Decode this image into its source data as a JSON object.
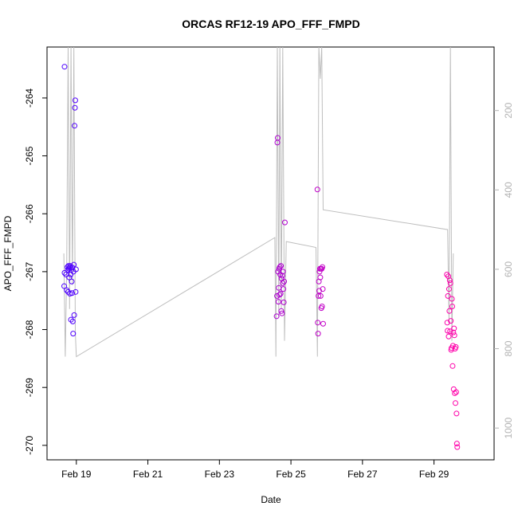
{
  "chart_data": {
    "type": "scatter",
    "title": "ORCAS RF12-19 APO_FFF_FMPD",
    "xlabel": "Date",
    "ylabel": "APO_FFF_FMPD",
    "x_unit": "days (0 = Feb 19)",
    "xlim": [
      -0.82,
      11.68
    ],
    "ylim": [
      -270.25,
      -263.12
    ],
    "x_ticks": [
      {
        "value": 0,
        "label": "Feb 19"
      },
      {
        "value": 2,
        "label": "Feb 21"
      },
      {
        "value": 4,
        "label": "Feb 23"
      },
      {
        "value": 6,
        "label": "Feb 25"
      },
      {
        "value": 8,
        "label": "Feb 27"
      },
      {
        "value": 10,
        "label": "Feb 29"
      }
    ],
    "y_ticks": [
      {
        "value": -264,
        "label": "-264"
      },
      {
        "value": -265,
        "label": "-265"
      },
      {
        "value": -266,
        "label": "-266"
      },
      {
        "value": -267,
        "label": "-267"
      },
      {
        "value": -268,
        "label": "-268"
      },
      {
        "value": -269,
        "label": "-269"
      },
      {
        "value": -270,
        "label": "-270"
      }
    ],
    "y2_axis": {
      "range": [
        1080,
        40
      ],
      "ticks": [
        {
          "value": 200,
          "label": "200"
        },
        {
          "value": 400,
          "label": "400"
        },
        {
          "value": 600,
          "label": "600"
        },
        {
          "value": 800,
          "label": "800"
        },
        {
          "value": 1000,
          "label": "1000"
        }
      ],
      "color": "#b3b3b3"
    },
    "secondary_series": {
      "color": "#bebebe",
      "points": [
        [
          -0.35,
          560
        ],
        [
          -0.31,
          820
        ],
        [
          -0.27,
          600
        ],
        [
          -0.23,
          40
        ],
        [
          -0.19,
          700
        ],
        [
          -0.15,
          40
        ],
        [
          -0.11,
          640
        ],
        [
          -0.07,
          40
        ],
        [
          -0.03,
          760
        ],
        [
          0.0,
          820
        ],
        [
          5.55,
          520
        ],
        [
          5.58,
          820
        ],
        [
          5.62,
          40
        ],
        [
          5.66,
          720
        ],
        [
          5.69,
          40
        ],
        [
          5.73,
          700
        ],
        [
          5.77,
          40
        ],
        [
          5.82,
          780
        ],
        [
          5.87,
          530
        ],
        [
          6.7,
          545
        ],
        [
          6.74,
          820
        ],
        [
          6.78,
          40
        ],
        [
          6.82,
          120
        ],
        [
          6.86,
          40
        ],
        [
          6.9,
          450
        ],
        [
          10.38,
          500
        ],
        [
          10.42,
          740
        ],
        [
          10.46,
          40
        ],
        [
          10.5,
          780
        ],
        [
          10.54,
          560
        ]
      ]
    },
    "series": [
      {
        "color_start": "#4a00ff",
        "color_end": "#ff00aa",
        "points": [
          [
            -0.33,
            -263.46
          ],
          [
            -0.34,
            -267.25
          ],
          [
            -0.33,
            -267.02
          ],
          [
            -0.29,
            -267.05
          ],
          [
            -0.27,
            -267.32
          ],
          [
            -0.25,
            -266.92
          ],
          [
            -0.24,
            -266.97
          ],
          [
            -0.23,
            -267.35
          ],
          [
            -0.22,
            -266.9
          ],
          [
            -0.21,
            -266.95
          ],
          [
            -0.2,
            -267.1
          ],
          [
            -0.19,
            -266.93
          ],
          [
            -0.18,
            -267.38
          ],
          [
            -0.17,
            -266.9
          ],
          [
            -0.16,
            -267.05
          ],
          [
            -0.15,
            -267.83
          ],
          [
            -0.14,
            -266.97
          ],
          [
            -0.13,
            -267.17
          ],
          [
            -0.12,
            -267.37
          ],
          [
            -0.11,
            -266.93
          ],
          [
            -0.1,
            -267.86
          ],
          [
            -0.09,
            -268.07
          ],
          [
            -0.08,
            -267.0
          ],
          [
            -0.07,
            -266.88
          ],
          [
            -0.06,
            -267.75
          ],
          [
            -0.05,
            -264.48
          ],
          [
            -0.04,
            -264.17
          ],
          [
            -0.03,
            -264.04
          ],
          [
            -0.02,
            -267.35
          ],
          [
            -0.01,
            -266.96
          ],
          [
            5.6,
            -267.77
          ],
          [
            5.61,
            -267.42
          ],
          [
            5.62,
            -264.77
          ],
          [
            5.63,
            -264.69
          ],
          [
            5.64,
            -267.0
          ],
          [
            5.65,
            -267.52
          ],
          [
            5.66,
            -267.28
          ],
          [
            5.67,
            -266.95
          ],
          [
            5.68,
            -267.4
          ],
          [
            5.69,
            -266.92
          ],
          [
            5.7,
            -267.05
          ],
          [
            5.71,
            -267.38
          ],
          [
            5.72,
            -266.9
          ],
          [
            5.73,
            -267.68
          ],
          [
            5.74,
            -267.12
          ],
          [
            5.75,
            -267.72
          ],
          [
            5.76,
            -267.07
          ],
          [
            5.77,
            -267.2
          ],
          [
            5.78,
            -267.0
          ],
          [
            5.79,
            -267.3
          ],
          [
            5.8,
            -267.53
          ],
          [
            5.81,
            -267.17
          ],
          [
            5.83,
            -266.15
          ],
          [
            6.74,
            -265.58
          ],
          [
            6.75,
            -267.88
          ],
          [
            6.76,
            -268.07
          ],
          [
            6.77,
            -267.42
          ],
          [
            6.78,
            -267.17
          ],
          [
            6.79,
            -267.33
          ],
          [
            6.8,
            -267.0
          ],
          [
            6.81,
            -266.95
          ],
          [
            6.82,
            -267.1
          ],
          [
            6.83,
            -267.42
          ],
          [
            6.84,
            -266.95
          ],
          [
            6.85,
            -267.63
          ],
          [
            6.86,
            -266.95
          ],
          [
            6.87,
            -267.6
          ],
          [
            6.88,
            -266.92
          ],
          [
            6.89,
            -267.3
          ],
          [
            6.9,
            -267.9
          ],
          [
            10.36,
            -267.05
          ],
          [
            10.37,
            -267.88
          ],
          [
            10.38,
            -268.02
          ],
          [
            10.39,
            -267.42
          ],
          [
            10.4,
            -267.08
          ],
          [
            10.41,
            -268.12
          ],
          [
            10.42,
            -267.3
          ],
          [
            10.43,
            -267.68
          ],
          [
            10.44,
            -267.15
          ],
          [
            10.45,
            -268.03
          ],
          [
            10.46,
            -267.2
          ],
          [
            10.47,
            -267.85
          ],
          [
            10.48,
            -268.35
          ],
          [
            10.49,
            -268.32
          ],
          [
            10.5,
            -267.47
          ],
          [
            10.51,
            -267.6
          ],
          [
            10.52,
            -268.63
          ],
          [
            10.53,
            -268.28
          ],
          [
            10.54,
            -268.05
          ],
          [
            10.55,
            -269.03
          ],
          [
            10.56,
            -267.98
          ],
          [
            10.57,
            -268.1
          ],
          [
            10.58,
            -269.1
          ],
          [
            10.59,
            -268.33
          ],
          [
            10.6,
            -269.27
          ],
          [
            10.61,
            -268.3
          ],
          [
            10.62,
            -269.08
          ],
          [
            10.63,
            -269.45
          ],
          [
            10.64,
            -269.97
          ],
          [
            10.65,
            -270.03
          ]
        ]
      }
    ]
  }
}
